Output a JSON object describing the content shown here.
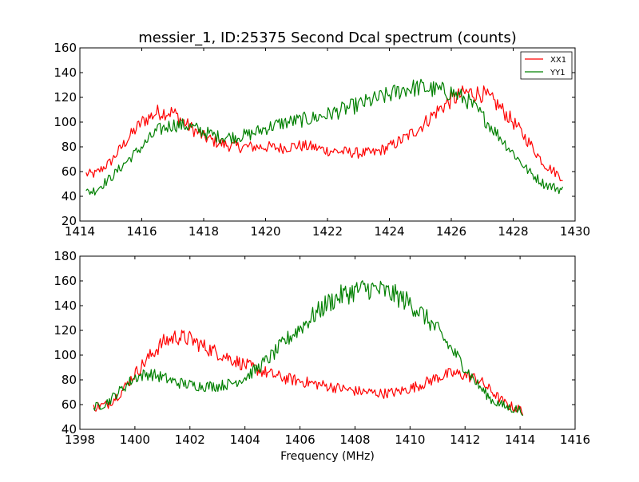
{
  "chart_data": [
    {
      "type": "line",
      "title": "messier_1, ID:25375 Second Dcal spectrum (counts)",
      "xlabel": "",
      "ylabel": "",
      "xlim": [
        1414,
        1430
      ],
      "ylim": [
        20,
        160
      ],
      "xticks": [
        1414,
        1416,
        1418,
        1420,
        1422,
        1424,
        1426,
        1428,
        1430
      ],
      "yticks": [
        20,
        40,
        60,
        80,
        100,
        120,
        140,
        160
      ],
      "grid": false,
      "legend": "top-right",
      "series": [
        {
          "name": "XX1",
          "color": "#ff0000",
          "x": [
            1414.2,
            1414.5,
            1415.0,
            1415.5,
            1416.0,
            1416.5,
            1417.0,
            1417.5,
            1418.0,
            1418.5,
            1419.0,
            1419.5,
            1420.0,
            1420.5,
            1421.0,
            1421.5,
            1422.0,
            1422.5,
            1423.0,
            1423.5,
            1424.0,
            1424.5,
            1425.0,
            1425.5,
            1426.0,
            1426.5,
            1427.0,
            1427.5,
            1428.0,
            1428.5,
            1429.0,
            1429.6
          ],
          "values": [
            58,
            58,
            68,
            85,
            100,
            108,
            108,
            97,
            88,
            83,
            80,
            80,
            80,
            79,
            81,
            80,
            77,
            76,
            75,
            75,
            80,
            87,
            96,
            108,
            118,
            124,
            123,
            114,
            100,
            84,
            66,
            55
          ]
        },
        {
          "name": "YY1",
          "color": "#008000",
          "x": [
            1414.2,
            1414.5,
            1415.0,
            1415.5,
            1416.0,
            1416.5,
            1417.0,
            1417.5,
            1418.0,
            1418.5,
            1419.0,
            1419.5,
            1420.0,
            1420.5,
            1421.0,
            1421.5,
            1422.0,
            1422.5,
            1423.0,
            1423.5,
            1424.0,
            1424.5,
            1425.0,
            1425.5,
            1426.0,
            1426.5,
            1427.0,
            1427.5,
            1428.0,
            1428.5,
            1429.0,
            1429.6
          ],
          "values": [
            43,
            45,
            55,
            68,
            80,
            93,
            98,
            97,
            92,
            88,
            88,
            90,
            95,
            99,
            101,
            103,
            106,
            110,
            114,
            118,
            122,
            127,
            128,
            126,
            124,
            118,
            105,
            90,
            75,
            60,
            50,
            45
          ]
        }
      ]
    },
    {
      "type": "line",
      "title": "",
      "xlabel": "Frequency (MHz)",
      "ylabel": "",
      "xlim": [
        1398,
        1416
      ],
      "ylim": [
        40,
        180
      ],
      "xticks": [
        1398,
        1400,
        1402,
        1404,
        1406,
        1408,
        1410,
        1412,
        1414,
        1416
      ],
      "yticks": [
        40,
        60,
        80,
        100,
        120,
        140,
        160,
        180
      ],
      "grid": false,
      "series": [
        {
          "color": "#ff0000",
          "x": [
            1398.5,
            1399.0,
            1399.5,
            1400.0,
            1400.5,
            1401.0,
            1401.5,
            1402.0,
            1402.5,
            1403.0,
            1403.5,
            1404.0,
            1404.5,
            1405.0,
            1405.5,
            1406.0,
            1406.5,
            1407.0,
            1407.5,
            1408.0,
            1408.5,
            1409.0,
            1409.5,
            1410.0,
            1410.5,
            1411.0,
            1411.5,
            1412.0,
            1412.5,
            1413.0,
            1413.5,
            1414.1
          ],
          "values": [
            58,
            60,
            70,
            85,
            98,
            110,
            115,
            113,
            107,
            102,
            97,
            92,
            88,
            84,
            81,
            79,
            77,
            75,
            73,
            71,
            70,
            69,
            70,
            73,
            77,
            82,
            85,
            84,
            80,
            70,
            60,
            55
          ]
        },
        {
          "color": "#008000",
          "x": [
            1398.5,
            1399.0,
            1399.5,
            1400.0,
            1400.5,
            1401.0,
            1401.5,
            1402.0,
            1402.5,
            1403.0,
            1403.5,
            1404.0,
            1404.5,
            1405.0,
            1405.5,
            1406.0,
            1406.5,
            1407.0,
            1407.5,
            1408.0,
            1408.5,
            1409.0,
            1409.5,
            1410.0,
            1410.5,
            1411.0,
            1411.5,
            1412.0,
            1412.5,
            1413.0,
            1413.5,
            1414.1
          ],
          "values": [
            57,
            62,
            72,
            82,
            85,
            82,
            78,
            76,
            75,
            75,
            77,
            82,
            90,
            100,
            112,
            122,
            132,
            142,
            148,
            152,
            154,
            152,
            148,
            142,
            132,
            120,
            105,
            90,
            75,
            63,
            58,
            55
          ]
        }
      ]
    }
  ]
}
